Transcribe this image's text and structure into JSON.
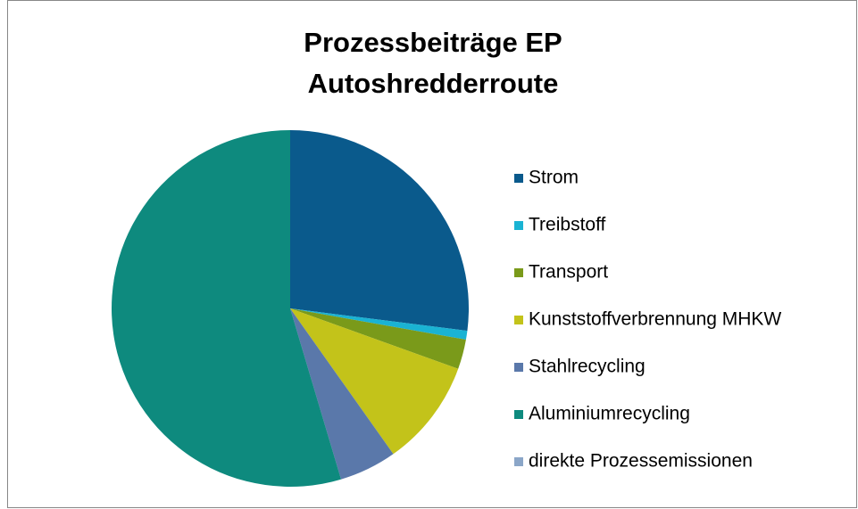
{
  "chart_data": {
    "type": "pie",
    "title": [
      "Prozessbeiträge EP",
      "Autoshredderroute"
    ],
    "categories": [
      "Strom",
      "Treibstoff",
      "Transport",
      "Kunststoffverbrennung MHKW",
      "Stahlrecycling",
      "Aluminiumrecycling",
      "direkte Prozessemissionen"
    ],
    "values": [
      27,
      0.8,
      2.7,
      9.7,
      5.2,
      54.6,
      0
    ],
    "colors": [
      "#0a5a8c",
      "#1ab3d3",
      "#7a9a1a",
      "#c3c31a",
      "#5a78aa",
      "#0e8a7e",
      "#8ba6c8"
    ],
    "legend": "right"
  }
}
